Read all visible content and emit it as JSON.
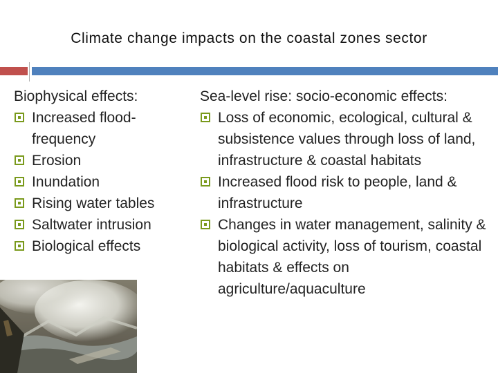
{
  "slide": {
    "title": "Climate change impacts on the coastal zones sector",
    "accent_colors": {
      "left_bar": "#c0504d",
      "right_bar": "#4f81bd",
      "bullet": "#7a9a1c"
    }
  },
  "left": {
    "heading": "Biophysical effects:",
    "items": [
      "Increased flood-frequency",
      "Erosion",
      "Inundation",
      "Rising water tables",
      "Saltwater intrusion",
      "Biological effects"
    ]
  },
  "right": {
    "heading": "Sea-level rise: socio-economic effects:",
    "items": [
      "Loss of economic, ecological, cultural & subsistence values through loss of land, infrastructure & coastal habitats",
      "Increased flood risk to people, land & infrastructure",
      "Changes in water management, salinity & biological activity, loss of tourism, coastal habitats & effects on agriculture/aquaculture"
    ]
  },
  "image": {
    "icon": "coastal-storm-waves-photo"
  }
}
